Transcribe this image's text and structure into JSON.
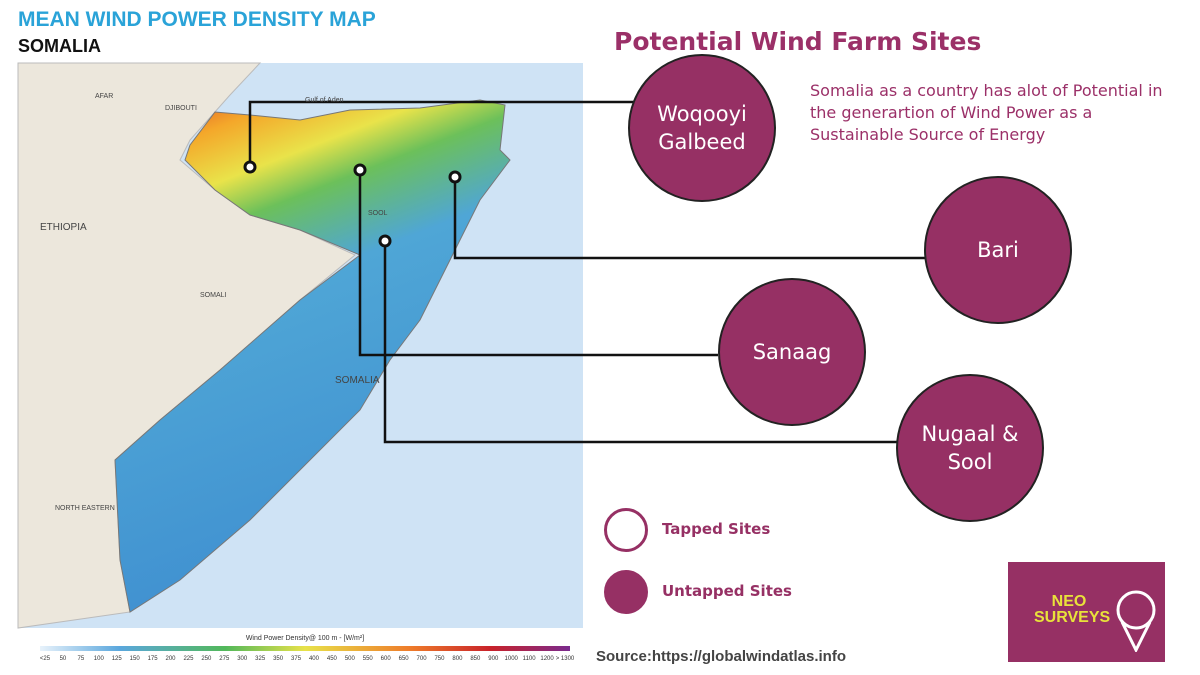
{
  "header": {
    "title": "MEAN WIND POWER DENSITY MAP",
    "subtitle": "SOMALIA"
  },
  "panel": {
    "title": "Potential Wind Farm Sites",
    "description": "Somalia as a country has alot of Potential in the generartion of Wind Power as a Sustainable Source of Energy"
  },
  "sites": [
    {
      "label": "Woqooyi Galbeed"
    },
    {
      "label": "Bari"
    },
    {
      "label": "Sanaag"
    },
    {
      "label": "Nugaal & Sool"
    }
  ],
  "legend": [
    {
      "label": "Tapped Sites"
    },
    {
      "label": "Untapped Sites"
    }
  ],
  "map": {
    "labels": [
      "AFAR",
      "DJIBOUTI",
      "Gulf of Aden",
      "ETHIOPIA",
      "SOMALI",
      "SOMALIA",
      "SOOL",
      "NORTH EASTERN"
    ],
    "colorbar": {
      "title": "Wind Power Density@ 100 m - [W/m²]",
      "ticks": [
        "<25",
        50,
        75,
        100,
        125,
        150,
        175,
        200,
        225,
        250,
        275,
        300,
        325,
        350,
        375,
        400,
        450,
        500,
        550,
        600,
        650,
        700,
        750,
        800,
        850,
        900,
        1000,
        1100,
        1200,
        "> 1300"
      ]
    }
  },
  "source": "Source:https://globalwindatlas.info",
  "logo": {
    "name": "NEO SURVEYS"
  }
}
